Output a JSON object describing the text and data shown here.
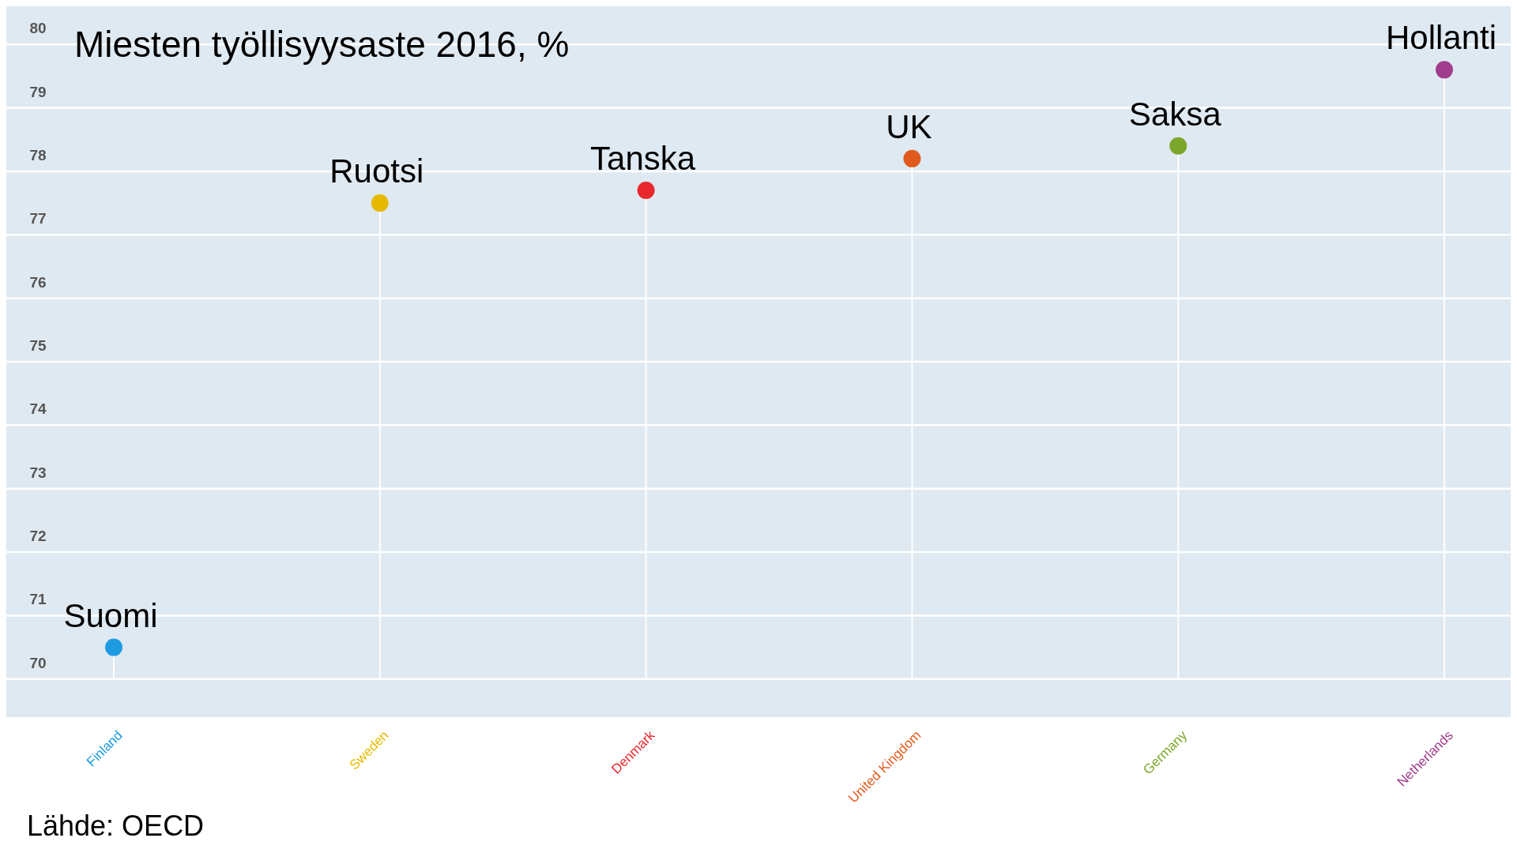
{
  "chart_data": {
    "type": "lollipop",
    "title": "Miesten työllisyysaste 2016, %",
    "categories": [
      "Finland",
      "Sweden",
      "Denmark",
      "United Kingdom",
      "Germany",
      "Netherlands"
    ],
    "values": [
      70.5,
      77.5,
      77.7,
      78.2,
      78.4,
      79.6
    ],
    "colors": [
      "#1e9be0",
      "#e6b800",
      "#e8282d",
      "#e05a1e",
      "#7ba62b",
      "#a03c8c"
    ],
    "ylim": [
      69.4,
      80.6
    ],
    "yticks": [
      70,
      71,
      72,
      73,
      74,
      75,
      76,
      77,
      78,
      79,
      80
    ],
    "grid": true,
    "marker": "circle",
    "annotations": [
      {
        "text": "Suomi",
        "x": "Finland",
        "y": 70.5
      },
      {
        "text": "Ruotsi",
        "x": "Sweden",
        "y": 77.5
      },
      {
        "text": "Tanska",
        "x": "Denmark",
        "y": 77.7
      },
      {
        "text": "UK",
        "x": "United Kingdom",
        "y": 78.2
      },
      {
        "text": "Saksa",
        "x": "Germany",
        "y": 78.4
      },
      {
        "text": "Hollanti",
        "x": "Netherlands",
        "y": 79.6
      },
      "Lähde: OECD"
    ]
  }
}
